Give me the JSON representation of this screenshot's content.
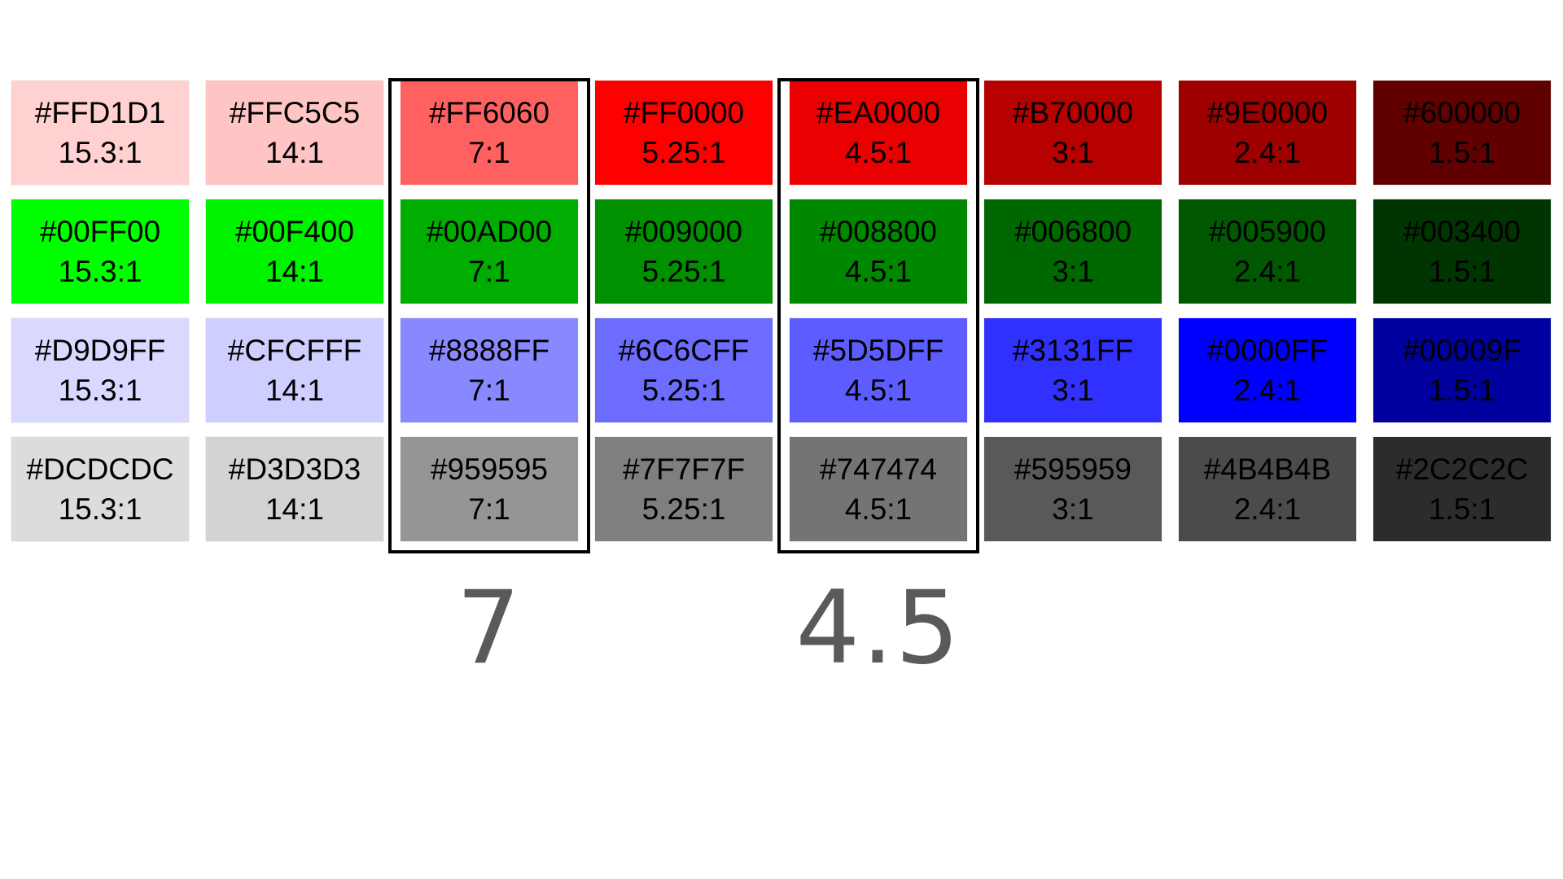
{
  "colors": {
    "highlight_border": "#000000",
    "label_text": "#5a5a5a",
    "swatch_text": "#000000"
  },
  "rows": [
    {
      "name": "red",
      "cells": [
        {
          "hex": "#FFD1D1",
          "ratio": "15.3:1"
        },
        {
          "hex": "#FFC5C5",
          "ratio": "14:1"
        },
        {
          "hex": "#FF6060",
          "ratio": "7:1"
        },
        {
          "hex": "#FF0000",
          "ratio": "5.25:1"
        },
        {
          "hex": "#EA0000",
          "ratio": "4.5:1"
        },
        {
          "hex": "#B70000",
          "ratio": "3:1"
        },
        {
          "hex": "#9E0000",
          "ratio": "2.4:1"
        },
        {
          "hex": "#600000",
          "ratio": "1.5:1"
        }
      ]
    },
    {
      "name": "green",
      "cells": [
        {
          "hex": "#00FF00",
          "ratio": "15.3:1"
        },
        {
          "hex": "#00F400",
          "ratio": "14:1"
        },
        {
          "hex": "#00AD00",
          "ratio": "7:1"
        },
        {
          "hex": "#009000",
          "ratio": "5.25:1"
        },
        {
          "hex": "#008800",
          "ratio": "4.5:1"
        },
        {
          "hex": "#006800",
          "ratio": "3:1"
        },
        {
          "hex": "#005900",
          "ratio": "2.4:1"
        },
        {
          "hex": "#003400",
          "ratio": "1.5:1"
        }
      ]
    },
    {
      "name": "blue",
      "cells": [
        {
          "hex": "#D9D9FF",
          "ratio": "15.3:1"
        },
        {
          "hex": "#CFCFFF",
          "ratio": "14:1"
        },
        {
          "hex": "#8888FF",
          "ratio": "7:1"
        },
        {
          "hex": "#6C6CFF",
          "ratio": "5.25:1"
        },
        {
          "hex": "#5D5DFF",
          "ratio": "4.5:1"
        },
        {
          "hex": "#3131FF",
          "ratio": "3:1"
        },
        {
          "hex": "#0000FF",
          "ratio": "2.4:1"
        },
        {
          "hex": "#00009F",
          "ratio": "1.5:1"
        }
      ]
    },
    {
      "name": "gray",
      "cells": [
        {
          "hex": "#DCDCDC",
          "ratio": "15.3:1"
        },
        {
          "hex": "#D3D3D3",
          "ratio": "14:1"
        },
        {
          "hex": "#959595",
          "ratio": "7:1"
        },
        {
          "hex": "#7F7F7F",
          "ratio": "5.25:1"
        },
        {
          "hex": "#747474",
          "ratio": "4.5:1"
        },
        {
          "hex": "#595959",
          "ratio": "3:1"
        },
        {
          "hex": "#4B4B4B",
          "ratio": "2.4:1"
        },
        {
          "hex": "#2C2C2C",
          "ratio": "1.5:1"
        }
      ]
    }
  ],
  "highlights": [
    {
      "column": 2,
      "label": "7"
    },
    {
      "column": 4,
      "label": "4.5"
    }
  ]
}
